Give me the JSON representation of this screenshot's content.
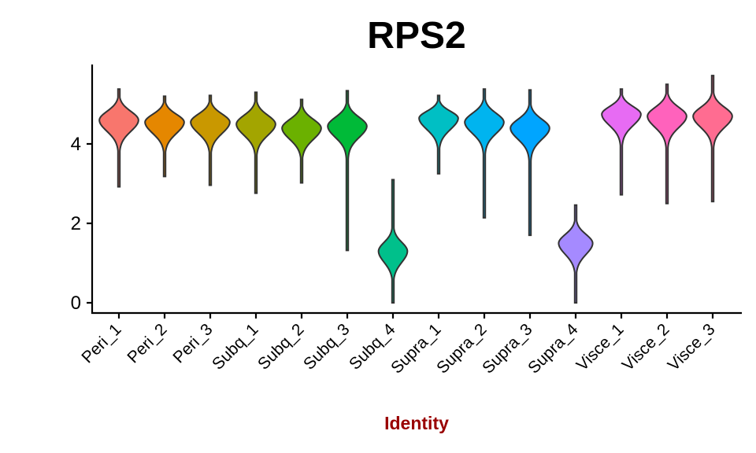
{
  "chart_data": {
    "type": "violin",
    "title": "RPS2",
    "xlabel": "Identity",
    "ylabel": "",
    "ylim": [
      -0.3,
      6.0
    ],
    "yticks": [
      0,
      2,
      4
    ],
    "grid": false,
    "legend": "none",
    "xlabel_color": "#990000",
    "categories": [
      "Peri_1",
      "Peri_2",
      "Peri_3",
      "Subq_1",
      "Subq_2",
      "Subq_3",
      "Subq_4",
      "Supra_1",
      "Supra_2",
      "Supra_3",
      "Supra_4",
      "Visce_1",
      "Visce_2",
      "Visce_3"
    ],
    "colors": [
      "#F8766D",
      "#E58700",
      "#C99800",
      "#A3A500",
      "#6BB100",
      "#00BA38",
      "#00C08B",
      "#00BFC4",
      "#00B4EF",
      "#00A5FF",
      "#A58AFF",
      "#E76BF3",
      "#FF62BC",
      "#FF6C91"
    ],
    "violins": [
      {
        "min": 2.92,
        "max": 5.38,
        "mode": 4.6,
        "width": 0.92
      },
      {
        "min": 3.18,
        "max": 5.2,
        "mode": 4.55,
        "width": 0.92
      },
      {
        "min": 2.96,
        "max": 5.22,
        "mode": 4.55,
        "width": 0.92
      },
      {
        "min": 2.76,
        "max": 5.3,
        "mode": 4.5,
        "width": 0.92
      },
      {
        "min": 3.02,
        "max": 5.12,
        "mode": 4.4,
        "width": 0.92
      },
      {
        "min": 1.32,
        "max": 5.34,
        "mode": 4.45,
        "width": 0.92
      },
      {
        "min": 0.0,
        "max": 3.1,
        "mode": 1.3,
        "width": 0.68
      },
      {
        "min": 3.25,
        "max": 5.22,
        "mode": 4.65,
        "width": 0.92
      },
      {
        "min": 2.14,
        "max": 5.38,
        "mode": 4.55,
        "width": 0.92
      },
      {
        "min": 1.7,
        "max": 5.36,
        "mode": 4.4,
        "width": 0.92
      },
      {
        "min": 0.0,
        "max": 2.46,
        "mode": 1.5,
        "width": 0.8
      },
      {
        "min": 2.72,
        "max": 5.38,
        "mode": 4.75,
        "width": 0.92
      },
      {
        "min": 2.5,
        "max": 5.5,
        "mode": 4.7,
        "width": 0.92
      },
      {
        "min": 2.55,
        "max": 5.72,
        "mode": 4.7,
        "width": 0.92
      }
    ]
  }
}
